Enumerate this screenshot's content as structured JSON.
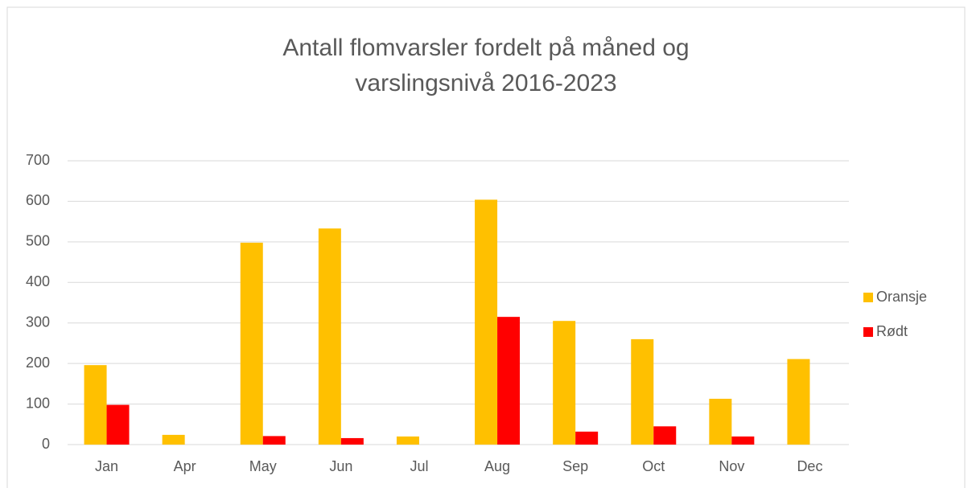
{
  "chart_data": {
    "type": "bar",
    "title": "Antall flomvarsler fordelt på måned og varslingsnivå 2016-2023",
    "categories": [
      "Jan",
      "Apr",
      "May",
      "Jun",
      "Jul",
      "Aug",
      "Sep",
      "Oct",
      "Nov",
      "Dec"
    ],
    "series": [
      {
        "name": "Oransje",
        "color": "#FFC000",
        "values": [
          196,
          24,
          498,
          533,
          20,
          604,
          305,
          260,
          113,
          211
        ]
      },
      {
        "name": "Rødt",
        "color": "#FF0000",
        "values": [
          98,
          0,
          21,
          16,
          0,
          315,
          32,
          45,
          20,
          0
        ]
      }
    ],
    "ylim": [
      0,
      700
    ],
    "yticks": [
      0,
      100,
      200,
      300,
      400,
      500,
      600,
      700
    ],
    "grid": true,
    "legend": "right"
  }
}
